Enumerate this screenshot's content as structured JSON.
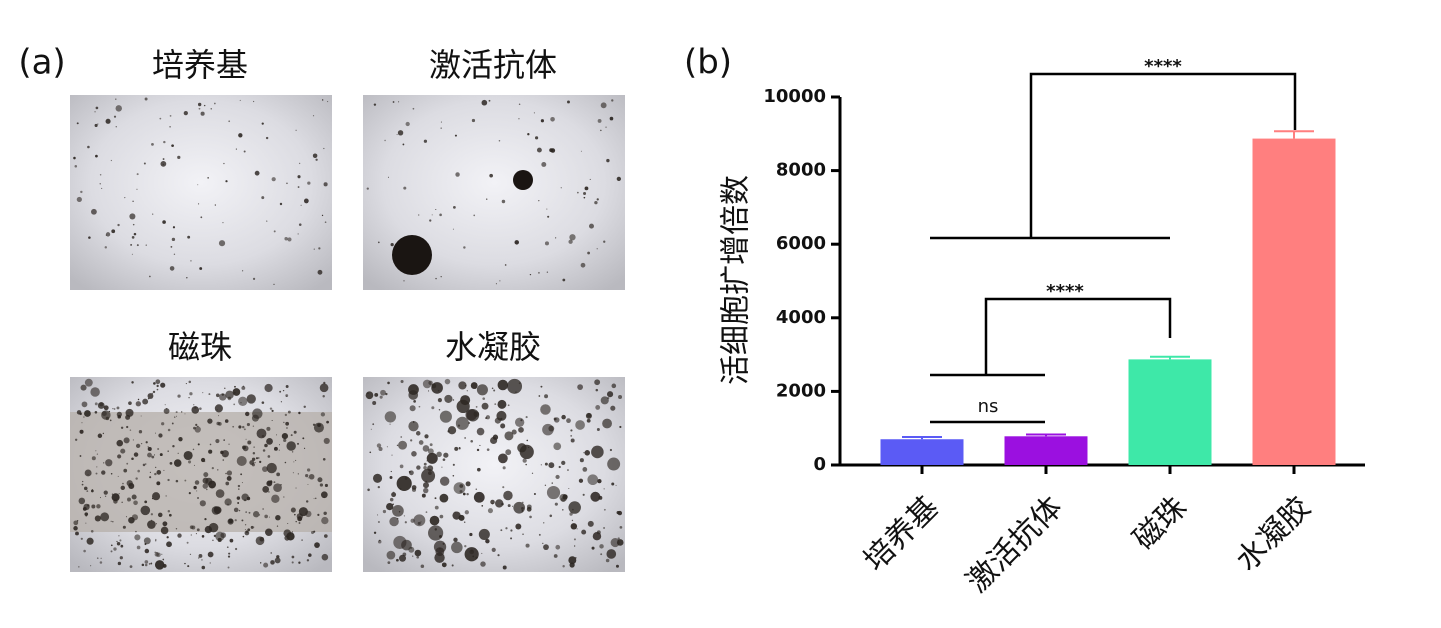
{
  "panel_a": {
    "label": "(a)",
    "images": [
      "培养基",
      "激活抗体",
      "磁珠",
      "水凝胶"
    ]
  },
  "chart_data": {
    "type": "bar",
    "panel_label": "(b)",
    "ylabel": "活细胞扩增倍数",
    "categories": [
      "培养基",
      "激活抗体",
      "磁珠",
      "水凝胶"
    ],
    "values": [
      700,
      780,
      2870,
      8870
    ],
    "errors": [
      60,
      50,
      70,
      200
    ],
    "colors": [
      "#5b5bf5",
      "#9b10e0",
      "#3ee8a8",
      "#ff7f7f"
    ],
    "ylim": [
      0,
      10000
    ],
    "yticks": [
      0,
      2000,
      4000,
      6000,
      8000,
      10000
    ],
    "annotations": [
      "ns",
      "****",
      "****"
    ]
  }
}
